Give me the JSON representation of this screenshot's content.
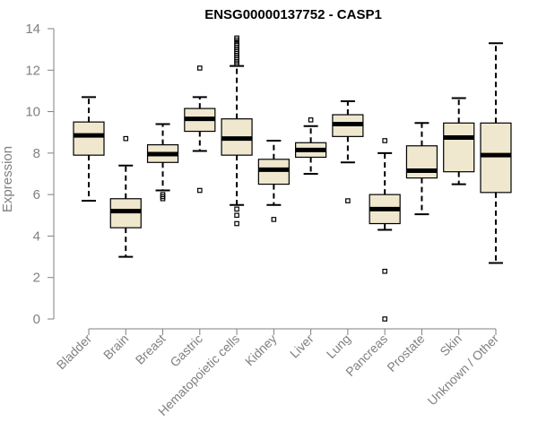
{
  "chart_data": {
    "type": "boxplot",
    "title": "ENSG00000137752 - CASP1",
    "xlabel": "",
    "ylabel": "Expression",
    "ylim": [
      0,
      14
    ],
    "yticks": [
      0,
      2,
      4,
      6,
      8,
      10,
      12,
      14
    ],
    "grid": false,
    "box_fill": "#efe8cf",
    "line_color": "#000000",
    "axis_color": "#808080",
    "categories": [
      "Bladder",
      "Brain",
      "Breast",
      "Gastric",
      "Hematopoietic cells",
      "Kidney",
      "Liver",
      "Lung",
      "Pancreas",
      "Prostate",
      "Skin",
      "Unknown / Other"
    ],
    "boxes": [
      {
        "q1": 7.9,
        "median": 8.85,
        "q3": 9.5,
        "whisker_low": 5.7,
        "whisker_high": 10.7,
        "outliers": []
      },
      {
        "q1": 4.4,
        "median": 5.2,
        "q3": 5.8,
        "whisker_low": 3.0,
        "whisker_high": 7.4,
        "outliers": [
          8.7
        ]
      },
      {
        "q1": 7.55,
        "median": 7.95,
        "q3": 8.4,
        "whisker_low": 6.2,
        "whisker_high": 9.4,
        "outliers": [
          6.0,
          5.9,
          5.8
        ]
      },
      {
        "q1": 9.05,
        "median": 9.65,
        "q3": 10.15,
        "whisker_low": 8.1,
        "whisker_high": 10.7,
        "outliers": [
          12.1,
          6.2
        ]
      },
      {
        "q1": 7.9,
        "median": 8.7,
        "q3": 9.65,
        "whisker_low": 5.5,
        "whisker_high": 12.2,
        "outliers": [
          12.3,
          12.4,
          12.5,
          12.6,
          12.7,
          12.8,
          12.9,
          13.0,
          13.1,
          13.2,
          13.3,
          13.45,
          13.55,
          5.3,
          5.0,
          4.6
        ]
      },
      {
        "q1": 6.5,
        "median": 7.2,
        "q3": 7.7,
        "whisker_low": 5.5,
        "whisker_high": 8.6,
        "outliers": [
          4.8
        ]
      },
      {
        "q1": 7.8,
        "median": 8.15,
        "q3": 8.5,
        "whisker_low": 7.0,
        "whisker_high": 9.3,
        "outliers": [
          9.6
        ]
      },
      {
        "q1": 8.8,
        "median": 9.4,
        "q3": 9.85,
        "whisker_low": 7.55,
        "whisker_high": 10.5,
        "outliers": [
          5.7
        ]
      },
      {
        "q1": 4.6,
        "median": 5.3,
        "q3": 6.0,
        "whisker_low": 4.3,
        "whisker_high": 8.0,
        "outliers": [
          8.6,
          2.3,
          0.0
        ]
      },
      {
        "q1": 6.8,
        "median": 7.15,
        "q3": 8.35,
        "whisker_low": 5.05,
        "whisker_high": 9.45,
        "outliers": []
      },
      {
        "q1": 7.1,
        "median": 8.75,
        "q3": 9.45,
        "whisker_low": 6.5,
        "whisker_high": 10.65,
        "outliers": []
      },
      {
        "q1": 6.1,
        "median": 7.9,
        "q3": 9.45,
        "whisker_low": 2.7,
        "whisker_high": 13.3,
        "outliers": []
      }
    ]
  }
}
